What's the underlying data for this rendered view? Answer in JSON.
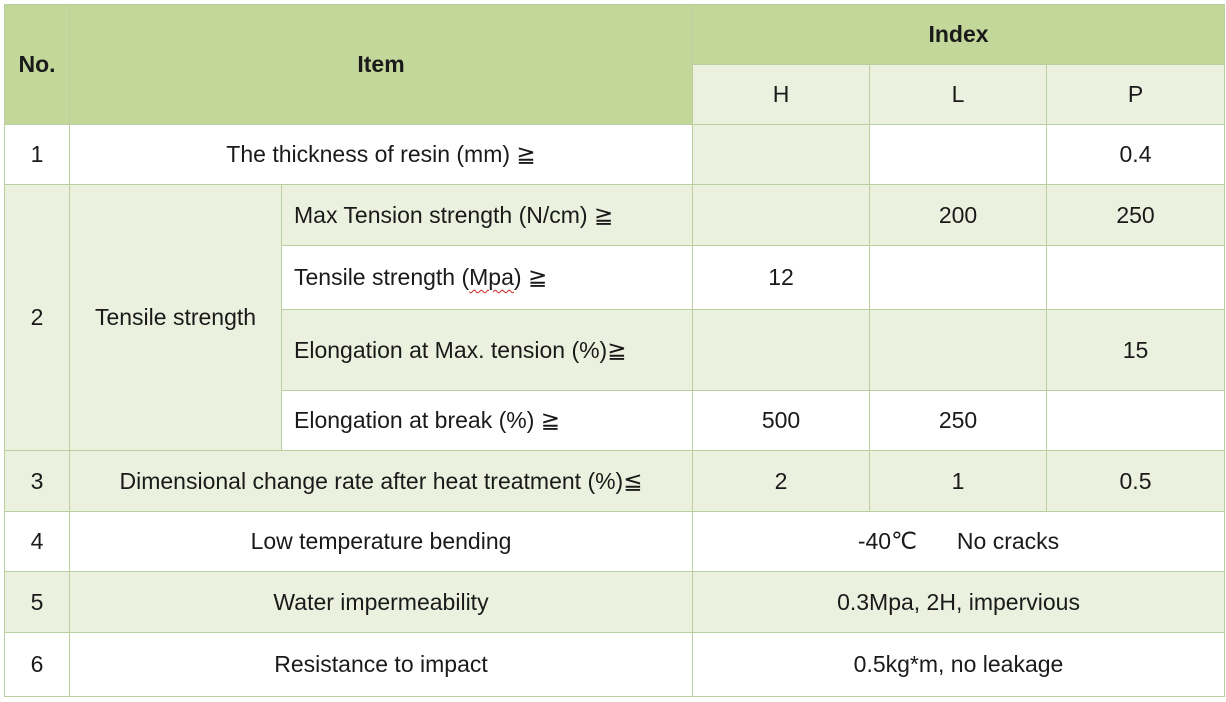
{
  "header": {
    "no": "No.",
    "item": "Item",
    "index": "Index",
    "h": "H",
    "l": "L",
    "p": "P"
  },
  "rows": {
    "r1": {
      "no": "1",
      "item": "The thickness of resin (mm) ≧",
      "h": "",
      "l": "",
      "p": "0.4"
    },
    "r2": {
      "no": "2",
      "item": "Tensile strength",
      "sub": [
        {
          "label": "Max Tension strength (N/cm) ≧",
          "h": "",
          "l": "200",
          "p": "250"
        },
        {
          "label_pre": "Tensile strength (",
          "label_mid": "Mpa",
          "label_post": ") ≧",
          "h": "12",
          "l": "",
          "p": ""
        },
        {
          "label": "Elongation at Max. tension (%)≧",
          "h": "",
          "l": "",
          "p": "15"
        },
        {
          "label": "Elongation at break (%) ≧",
          "h": "500",
          "l": "250",
          "p": ""
        }
      ]
    },
    "r3": {
      "no": "3",
      "item": "Dimensional change rate after heat treatment (%)≦",
      "h": "2",
      "l": "1",
      "p": "0.5"
    },
    "r4": {
      "no": "4",
      "item": "Low temperature bending",
      "value_temp": "-40℃",
      "value_text": "No cracks"
    },
    "r5": {
      "no": "5",
      "item": "Water impermeability",
      "value": "0.3Mpa, 2H, impervious"
    },
    "r6": {
      "no": "6",
      "item": "Resistance to impact",
      "value": "0.5kg*m, no leakage"
    }
  },
  "colors": {
    "header_bg": "#c4d79b",
    "band_bg": "#ebf1de",
    "border": "#b9cfa0"
  }
}
